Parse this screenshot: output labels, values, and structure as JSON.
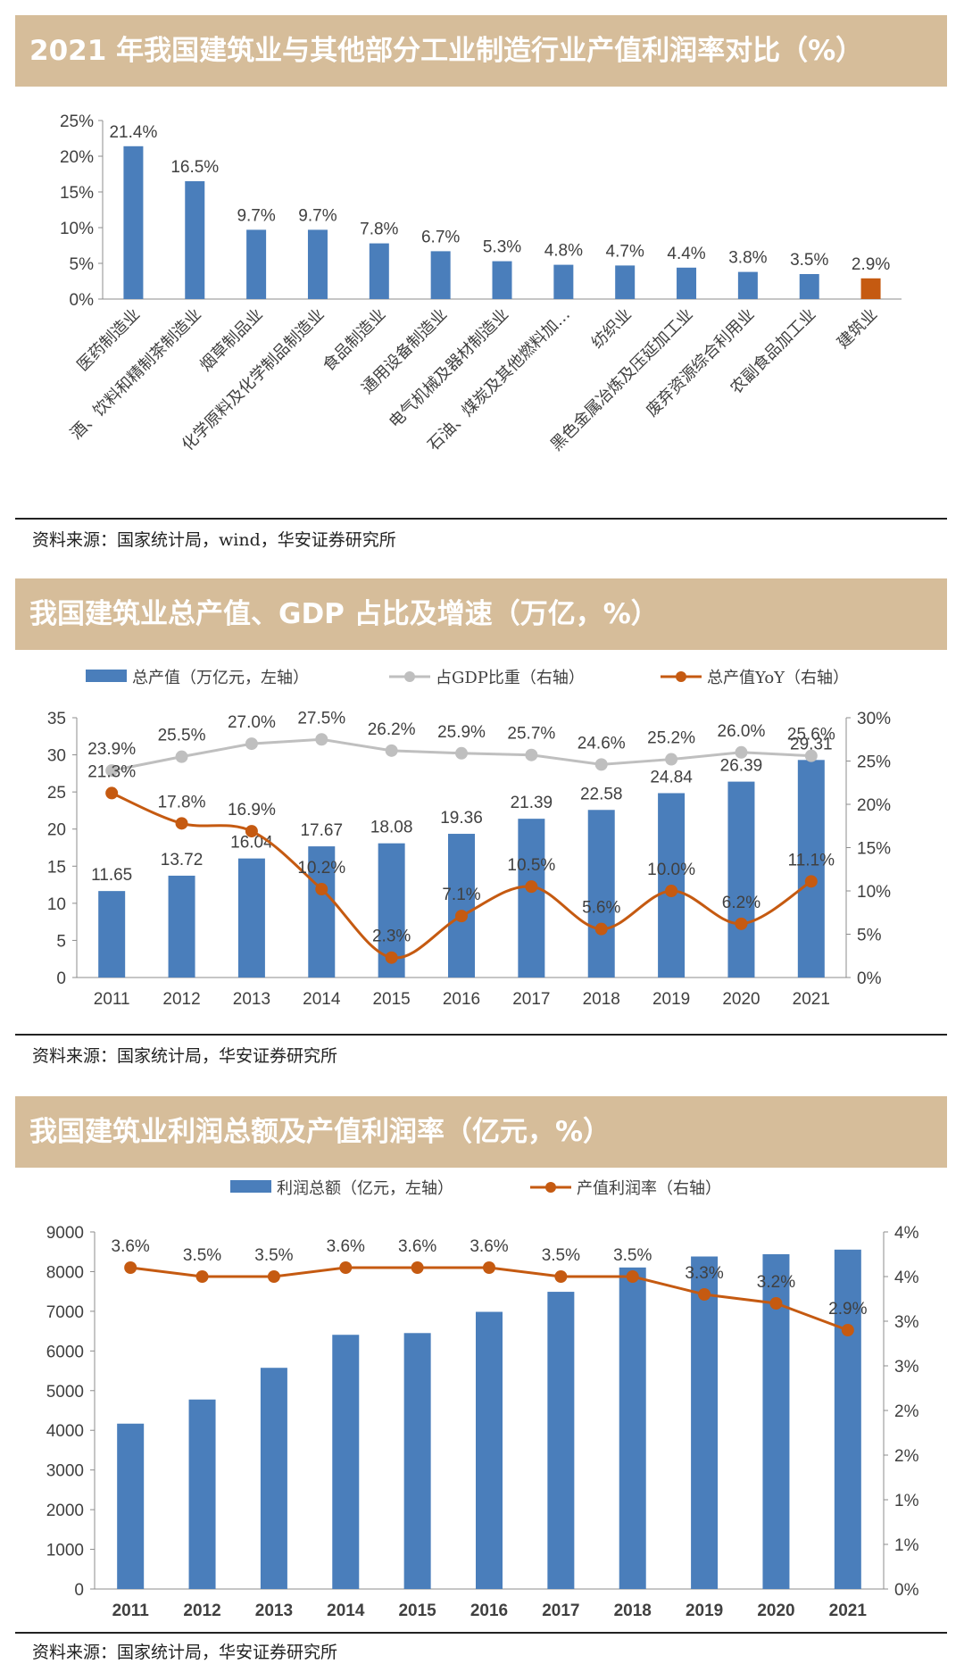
{
  "chart_data": [
    {
      "type": "bar",
      "title": "2021 年我国建筑业与其他部分工业制造行业产值利润率对比（%）",
      "source": "资料来源：国家统计局，wind，华安证券研究所",
      "categories": [
        "医药制造业",
        "酒、饮料和精制茶制造业",
        "烟草制品业",
        "化学原料及化学制品制造业",
        "食品制造业",
        "通用设备制造业",
        "电气机械及器材制造业",
        "石油、煤炭及其他燃料加…",
        "纺织业",
        "黑色金属冶炼及压延加工业",
        "废弃资源综合利用业",
        "农副食品加工业",
        "建筑业"
      ],
      "values": [
        21.4,
        16.5,
        9.7,
        9.7,
        7.8,
        6.7,
        5.3,
        4.8,
        4.7,
        4.4,
        3.8,
        3.5,
        2.9
      ],
      "value_labels": [
        "21.4%",
        "16.5%",
        "9.7%",
        "9.7%",
        "7.8%",
        "6.7%",
        "5.3%",
        "4.8%",
        "4.7%",
        "4.4%",
        "3.8%",
        "3.5%",
        "2.9%"
      ],
      "yticks": [
        "0%",
        "5%",
        "10%",
        "15%",
        "20%",
        "25%"
      ],
      "ylim": [
        0,
        25
      ],
      "bar_color": "#4a7ebb",
      "highlight_color": "#c55a11",
      "highlight_index": 12
    },
    {
      "type": "bar+line",
      "title": "我国建筑业总产值、GDP 占比及增速（万亿，%）",
      "source": "资料来源：国家统计局，华安证券研究所",
      "categories": [
        "2011",
        "2012",
        "2013",
        "2014",
        "2015",
        "2016",
        "2017",
        "2018",
        "2019",
        "2020",
        "2021"
      ],
      "series": [
        {
          "name": "总产值（万亿元，左轴）",
          "kind": "bar",
          "axis": "left",
          "color": "#4a7ebb",
          "values": [
            11.65,
            13.72,
            16.04,
            17.67,
            18.08,
            19.36,
            21.39,
            22.58,
            24.84,
            26.39,
            29.31
          ],
          "labels": [
            "11.65",
            "13.72",
            "16.04",
            "17.67",
            "18.08",
            "19.36",
            "21.39",
            "22.58",
            "24.84",
            "26.39",
            "29.31"
          ]
        },
        {
          "name": "占GDP比重（右轴）",
          "kind": "line",
          "axis": "right",
          "color": "#bfbfbf",
          "values": [
            23.9,
            25.5,
            27.0,
            27.5,
            26.2,
            25.9,
            25.7,
            24.6,
            25.2,
            26.0,
            25.6
          ],
          "labels": [
            "23.9%",
            "25.5%",
            "27.0%",
            "27.5%",
            "26.2%",
            "25.9%",
            "25.7%",
            "24.6%",
            "25.2%",
            "26.0%",
            "25.6%"
          ]
        },
        {
          "name": "总产值YoY（右轴）",
          "kind": "line",
          "axis": "right",
          "color": "#c55a11",
          "values": [
            21.3,
            17.8,
            16.9,
            10.2,
            2.3,
            7.1,
            10.5,
            5.6,
            10.0,
            6.2,
            11.1
          ],
          "labels": [
            "21.3%",
            "17.8%",
            "16.9%",
            "10.2%",
            "2.3%",
            "7.1%",
            "10.5%",
            "5.6%",
            "10.0%",
            "6.2%",
            "11.1%"
          ]
        }
      ],
      "yticks_left": [
        "0",
        "5",
        "10",
        "15",
        "20",
        "25",
        "30",
        "35"
      ],
      "yticks_right": [
        "0%",
        "5%",
        "10%",
        "15%",
        "20%",
        "25%",
        "30%"
      ],
      "ylim_left": [
        0,
        35
      ],
      "ylim_right": [
        0,
        30
      ],
      "legend_placement": "top"
    },
    {
      "type": "bar+line",
      "title": "我国建筑业利润总额及产值利润率（亿元，%）",
      "source": "资料来源：国家统计局，华安证券研究所",
      "categories": [
        "2011",
        "2012",
        "2013",
        "2014",
        "2015",
        "2016",
        "2017",
        "2018",
        "2019",
        "2020",
        "2021"
      ],
      "series": [
        {
          "name": "利润总额（亿元，左轴）",
          "kind": "bar",
          "axis": "left",
          "color": "#4a7ebb",
          "values": [
            4168,
            4776,
            5575,
            6407,
            6451,
            6986,
            7491,
            8104,
            8381,
            8439,
            8554
          ]
        },
        {
          "name": "产值利润率（右轴）",
          "kind": "line",
          "axis": "right",
          "color": "#c55a11",
          "values": [
            3.6,
            3.5,
            3.5,
            3.6,
            3.6,
            3.6,
            3.5,
            3.5,
            3.3,
            3.2,
            2.9
          ],
          "labels": [
            "3.6%",
            "3.5%",
            "3.5%",
            "3.6%",
            "3.6%",
            "3.6%",
            "3.5%",
            "3.5%",
            "3.3%",
            "3.2%",
            "2.9%"
          ]
        }
      ],
      "yticks_left": [
        "0",
        "1000",
        "2000",
        "3000",
        "4000",
        "5000",
        "6000",
        "7000",
        "8000",
        "9000"
      ],
      "yticks_right": [
        "0%",
        "1%",
        "1%",
        "2%",
        "2%",
        "3%",
        "3%",
        "4%",
        "4%"
      ],
      "ylim_left": [
        0,
        9000
      ],
      "ylim_right": [
        0,
        4
      ],
      "legend_placement": "top"
    }
  ]
}
